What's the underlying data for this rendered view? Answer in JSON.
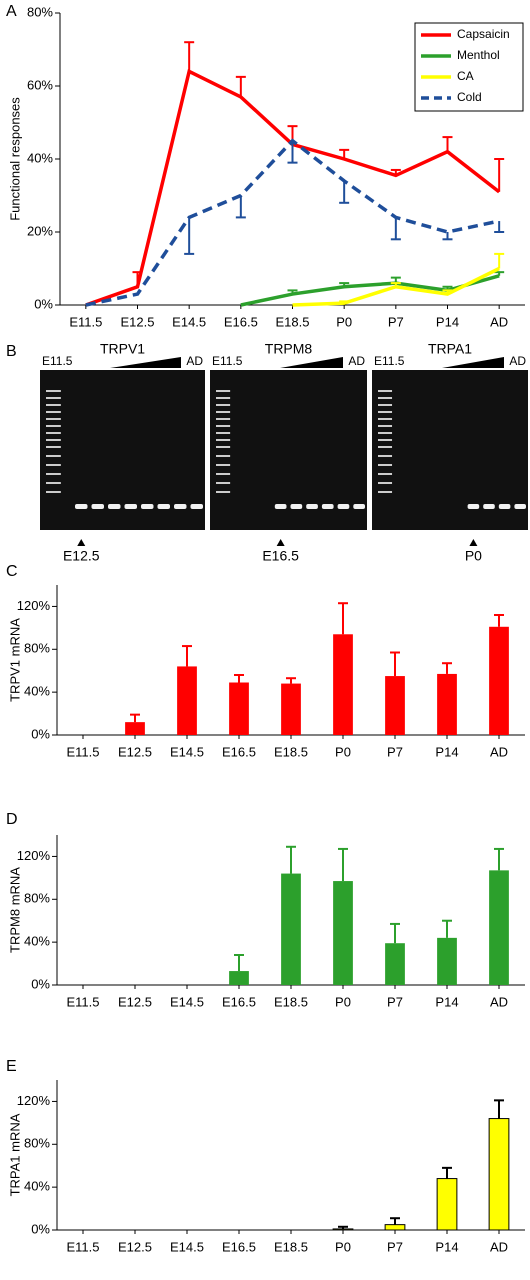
{
  "chart_data": [
    {
      "type": "line",
      "letter": "A",
      "ylabel": "Functional responses",
      "categories": [
        "E11.5",
        "E12.5",
        "E14.5",
        "E16.5",
        "E18.5",
        "P0",
        "P7",
        "P14",
        "AD"
      ],
      "ylim": [
        0,
        80
      ],
      "yticks": [
        {
          "value": 0,
          "label": "0%"
        },
        {
          "value": 20,
          "label": "20%"
        },
        {
          "value": 40,
          "label": "40%"
        },
        {
          "value": 60,
          "label": "60%"
        },
        {
          "value": 80,
          "label": "80%"
        }
      ],
      "legend": "upper right",
      "series": [
        {
          "name": "Capsaicin",
          "color": "#ff0000",
          "values": [
            0,
            5,
            64,
            57,
            44,
            40,
            35.5,
            42,
            31
          ],
          "errors": [
            null,
            4,
            8,
            5.5,
            5,
            2.5,
            1.5,
            4,
            9
          ]
        },
        {
          "name": "Menthol",
          "color": "#2ca02c",
          "values": [
            null,
            null,
            null,
            0,
            3,
            5,
            6,
            4,
            8
          ],
          "errors": [
            null,
            null,
            null,
            null,
            1,
            1,
            1.5,
            1,
            1
          ]
        },
        {
          "name": "CA",
          "color": "#ffff00",
          "values": [
            null,
            null,
            null,
            null,
            0,
            0.5,
            5,
            3,
            10
          ],
          "errors": [
            null,
            null,
            null,
            null,
            null,
            0.5,
            1,
            1,
            4
          ]
        },
        {
          "name": "Cold",
          "color": "#1f4e9a",
          "dash": true,
          "error_direction": "down",
          "values": [
            0,
            3,
            24,
            30,
            45,
            34,
            24,
            20,
            23
          ],
          "errors": [
            null,
            null,
            10,
            6,
            6,
            6,
            6,
            2,
            3
          ]
        }
      ]
    },
    {
      "type": "bar",
      "letter": "C",
      "ylabel": "TRPV1 mRNA",
      "color": "#ff0000",
      "categories": [
        "E11.5",
        "E12.5",
        "E14.5",
        "E16.5",
        "E18.5",
        "P0",
        "P7",
        "P14",
        "AD"
      ],
      "values": [
        0,
        12,
        64,
        49,
        48,
        94,
        55,
        57,
        101
      ],
      "errors": [
        null,
        7,
        19,
        7,
        5,
        29,
        22,
        10,
        11
      ],
      "ylim": [
        0,
        140
      ],
      "yticks": [
        {
          "value": 0,
          "label": "0%"
        },
        {
          "value": 40,
          "label": "40%"
        },
        {
          "value": 80,
          "label": "80%"
        },
        {
          "value": 120,
          "label": "120%"
        }
      ]
    },
    {
      "type": "bar",
      "letter": "D",
      "ylabel": "TRPM8 mRNA",
      "color": "#2ca02c",
      "categories": [
        "E11.5",
        "E12.5",
        "E14.5",
        "E16.5",
        "E18.5",
        "P0",
        "P7",
        "P14",
        "AD"
      ],
      "values": [
        0,
        0,
        0,
        13,
        104,
        97,
        39,
        44,
        107
      ],
      "errors": [
        null,
        null,
        null,
        15,
        25,
        30,
        18,
        16,
        20
      ],
      "ylim": [
        0,
        140
      ],
      "yticks": [
        {
          "value": 0,
          "label": "0%"
        },
        {
          "value": 40,
          "label": "40%"
        },
        {
          "value": 80,
          "label": "80%"
        },
        {
          "value": 120,
          "label": "120%"
        }
      ]
    },
    {
      "type": "bar",
      "letter": "E",
      "ylabel": "TRPA1 mRNA",
      "color": "#ffff00",
      "edgecolor": "#000000",
      "categories": [
        "E11.5",
        "E12.5",
        "E14.5",
        "E16.5",
        "E18.5",
        "P0",
        "P7",
        "P14",
        "AD"
      ],
      "values": [
        0,
        0,
        0,
        0,
        0,
        1,
        5,
        48,
        104
      ],
      "errors": [
        null,
        null,
        null,
        null,
        null,
        2,
        6,
        10,
        17
      ],
      "ylim": [
        0,
        140
      ],
      "yticks": [
        {
          "value": 0,
          "label": "0%"
        },
        {
          "value": 40,
          "label": "40%"
        },
        {
          "value": 80,
          "label": "80%"
        },
        {
          "value": 120,
          "label": "120%"
        }
      ]
    }
  ],
  "gel_panel": {
    "letter": "B",
    "gels": [
      {
        "title": "TRPV1",
        "start": "E11.5",
        "end": "AD",
        "onset": "E12.5"
      },
      {
        "title": "TRPM8",
        "start": "E11.5",
        "end": "AD",
        "onset": "E16.5"
      },
      {
        "title": "TRPA1",
        "start": "E11.5",
        "end": "AD",
        "onset": "P0"
      }
    ]
  }
}
